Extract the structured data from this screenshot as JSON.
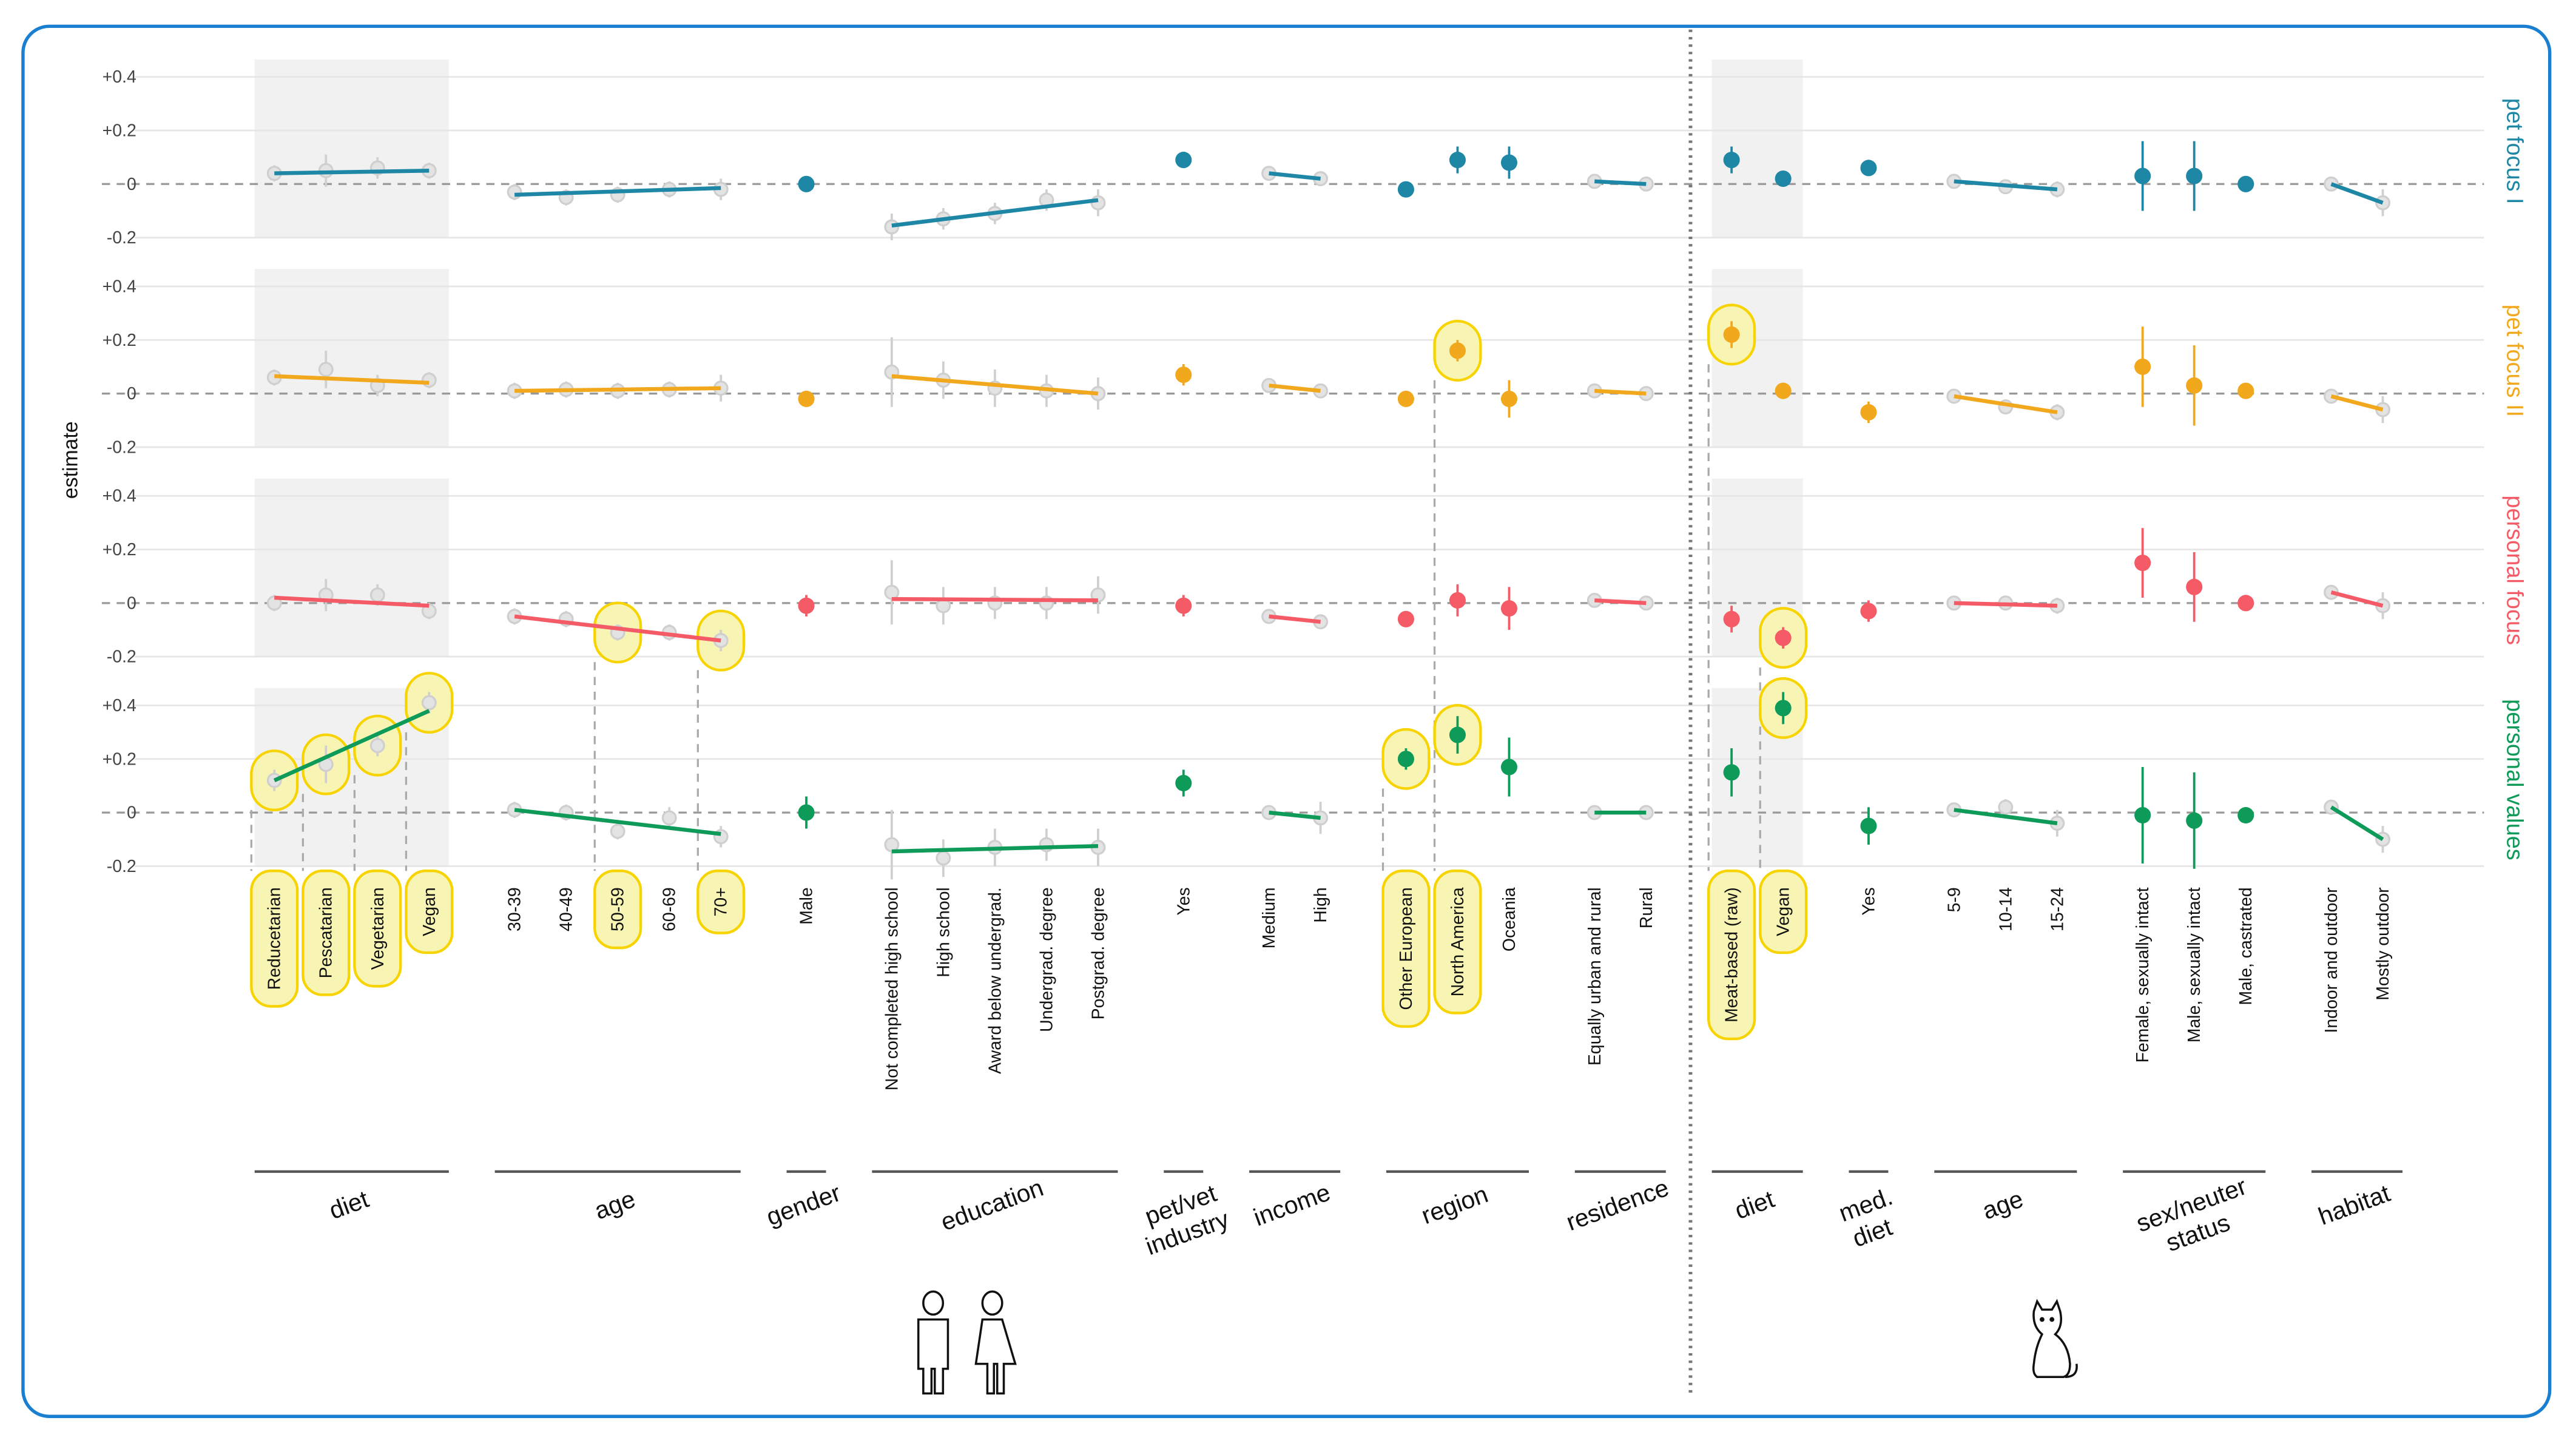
{
  "chart_data": {
    "type": "scatter",
    "title": "",
    "ylabel": "estimate",
    "ylim": [
      -0.2,
      0.4
    ],
    "yticks": [
      {
        "v": 0.4,
        "label": "+0.4"
      },
      {
        "v": 0.2,
        "label": "+0.2"
      },
      {
        "v": 0,
        "label": "0"
      },
      {
        "v": -0.2,
        "label": "-0.2"
      }
    ],
    "grid": true,
    "rows": [
      {
        "name": "pet focus I",
        "color": "#1f87a6"
      },
      {
        "name": "pet focus II",
        "color": "#f2a81d"
      },
      {
        "name": "personal focus",
        "color": "#f45b66"
      },
      {
        "name": "personal values",
        "color": "#0e9a58"
      }
    ],
    "groups": [
      {
        "key": "hdiet",
        "label": [
          "diet"
        ],
        "side": "human",
        "trend": true,
        "shaded": true,
        "categories": [
          "Reducetarian",
          "Pescatarian",
          "Vegetarian",
          "Vegan"
        ]
      },
      {
        "key": "hage",
        "label": [
          "age"
        ],
        "side": "human",
        "trend": true,
        "categories": [
          "30-39",
          "40-49",
          "50-59",
          "60-69",
          "70+"
        ]
      },
      {
        "key": "gender",
        "label": [
          "gender"
        ],
        "side": "human",
        "trend": false,
        "categories": [
          "Male"
        ]
      },
      {
        "key": "edu",
        "label": [
          "education"
        ],
        "side": "human",
        "trend": true,
        "categories": [
          "Not completed high school",
          "High school",
          "Award below undergrad.",
          "Undergrad. degree",
          "Postgrad. degree"
        ]
      },
      {
        "key": "pet",
        "label": [
          "pet/vet",
          "industry"
        ],
        "side": "human",
        "trend": false,
        "categories": [
          "Yes"
        ]
      },
      {
        "key": "income",
        "label": [
          "income"
        ],
        "side": "human",
        "trend": true,
        "categories": [
          "Medium",
          "High"
        ]
      },
      {
        "key": "region",
        "label": [
          "region"
        ],
        "side": "human",
        "trend": false,
        "categories": [
          "Other European",
          "North America",
          "Oceania"
        ]
      },
      {
        "key": "residence",
        "label": [
          "residence"
        ],
        "side": "human",
        "trend": true,
        "categories": [
          "Equally urban and rural",
          "Rural"
        ]
      },
      {
        "key": "cdiet",
        "label": [
          "diet"
        ],
        "side": "cat",
        "trend": false,
        "shaded": true,
        "categories": [
          "Meat-based (raw)",
          "Vegan"
        ]
      },
      {
        "key": "med",
        "label": [
          "med.",
          "diet"
        ],
        "side": "cat",
        "trend": false,
        "categories": [
          "Yes"
        ]
      },
      {
        "key": "cage",
        "label": [
          "age"
        ],
        "side": "cat",
        "trend": true,
        "categories": [
          "5-9",
          "10-14",
          "15-24"
        ]
      },
      {
        "key": "sex",
        "label": [
          "sex/neuter",
          "status"
        ],
        "side": "cat",
        "trend": false,
        "categories": [
          "Female, sexually intact",
          "Male, sexually intact",
          "Male, castrated"
        ]
      },
      {
        "key": "habitat",
        "label": [
          "habitat"
        ],
        "side": "cat",
        "trend": true,
        "categories": [
          "Indoor and outdoor",
          "Mostly outdoor"
        ]
      }
    ],
    "series": [
      {
        "row": "pet focus I",
        "values": {
          "hdiet": [
            [
              0.04,
              0.03
            ],
            [
              0.05,
              0.06
            ],
            [
              0.06,
              0.04
            ],
            [
              0.05,
              0.03
            ]
          ],
          "hdiet_trend": [
            0.04,
            0.05
          ],
          "hage": [
            [
              -0.03,
              0.03
            ],
            [
              -0.05,
              0.03
            ],
            [
              -0.04,
              0.03
            ],
            [
              -0.02,
              0.03
            ],
            [
              -0.02,
              0.04
            ]
          ],
          "hage_trend": [
            -0.04,
            -0.015
          ],
          "gender": [
            [
              0.0,
              0.03
            ]
          ],
          "edu": [
            [
              -0.16,
              0.05
            ],
            [
              -0.13,
              0.04
            ],
            [
              -0.11,
              0.04
            ],
            [
              -0.06,
              0.04
            ],
            [
              -0.07,
              0.05
            ]
          ],
          "edu_trend": [
            -0.155,
            -0.06
          ],
          "pet": [
            [
              0.09,
              0.03
            ]
          ],
          "income": [
            [
              0.04,
              0.02
            ],
            [
              0.02,
              0.02
            ]
          ],
          "income_trend": [
            0.04,
            0.02
          ],
          "region": [
            [
              -0.02,
              0.02
            ],
            [
              0.09,
              0.05
            ],
            [
              0.08,
              0.06
            ]
          ],
          "residence": [
            [
              0.01,
              0.01
            ],
            [
              0.0,
              0.01
            ]
          ],
          "residence_trend": [
            0.01,
            0.0
          ],
          "cdiet": [
            [
              0.09,
              0.05
            ],
            [
              0.02,
              0.03
            ]
          ],
          "med": [
            [
              0.06,
              0.03
            ]
          ],
          "cage": [
            [
              0.01,
              0.02
            ],
            [
              -0.01,
              0.02
            ],
            [
              -0.02,
              0.03
            ]
          ],
          "cage_trend": [
            0.01,
            -0.02
          ],
          "sex": [
            [
              0.03,
              0.13
            ],
            [
              0.03,
              0.13
            ],
            [
              0.0,
              0.01
            ]
          ],
          "habitat": [
            [
              0.0,
              0.01
            ],
            [
              -0.07,
              0.05
            ]
          ],
          "habitat_trend": [
            0.0,
            -0.07
          ]
        }
      },
      {
        "row": "pet focus II",
        "values": {
          "hdiet": [
            [
              0.06,
              0.03
            ],
            [
              0.09,
              0.07
            ],
            [
              0.03,
              0.04
            ],
            [
              0.05,
              0.03
            ]
          ],
          "hdiet_trend": [
            0.065,
            0.04
          ],
          "hage": [
            [
              0.01,
              0.03
            ],
            [
              0.015,
              0.03
            ],
            [
              0.01,
              0.03
            ],
            [
              0.015,
              0.03
            ],
            [
              0.02,
              0.05
            ]
          ],
          "hage_trend": [
            0.01,
            0.02
          ],
          "gender": [
            [
              -0.02,
              0.03
            ]
          ],
          "edu": [
            [
              0.08,
              0.13
            ],
            [
              0.05,
              0.07
            ],
            [
              0.02,
              0.07
            ],
            [
              0.01,
              0.06
            ],
            [
              0.0,
              0.06
            ]
          ],
          "edu_trend": [
            0.065,
            0.0
          ],
          "pet": [
            [
              0.07,
              0.04
            ]
          ],
          "income": [
            [
              0.03,
              0.01
            ],
            [
              0.01,
              0.02
            ]
          ],
          "income_trend": [
            0.03,
            0.01
          ],
          "region": [
            [
              -0.02,
              0.02
            ],
            [
              0.16,
              0.04
            ],
            [
              -0.02,
              0.07
            ]
          ],
          "residence": [
            [
              0.01,
              0.01
            ],
            [
              0.0,
              0.01
            ]
          ],
          "residence_trend": [
            0.01,
            0.0
          ],
          "cdiet": [
            [
              0.22,
              0.05
            ],
            [
              0.01,
              0.03
            ]
          ],
          "med": [
            [
              -0.07,
              0.04
            ]
          ],
          "cage": [
            [
              -0.01,
              0.02
            ],
            [
              -0.05,
              0.02
            ],
            [
              -0.07,
              0.03
            ]
          ],
          "cage_trend": [
            -0.01,
            -0.07
          ],
          "sex": [
            [
              0.1,
              0.15
            ],
            [
              0.03,
              0.15
            ],
            [
              0.01,
              0.01
            ]
          ],
          "habitat": [
            [
              -0.01,
              0.01
            ],
            [
              -0.06,
              0.05
            ]
          ],
          "habitat_trend": [
            -0.01,
            -0.06
          ]
        }
      },
      {
        "row": "personal focus",
        "values": {
          "hdiet": [
            [
              0.0,
              0.03
            ],
            [
              0.03,
              0.06
            ],
            [
              0.03,
              0.04
            ],
            [
              -0.03,
              0.03
            ]
          ],
          "hdiet_trend": [
            0.02,
            -0.01
          ],
          "hage": [
            [
              -0.05,
              0.03
            ],
            [
              -0.06,
              0.03
            ],
            [
              -0.11,
              0.03
            ],
            [
              -0.11,
              0.03
            ],
            [
              -0.14,
              0.04
            ]
          ],
          "hage_trend": [
            -0.05,
            -0.14
          ],
          "gender": [
            [
              -0.01,
              0.04
            ]
          ],
          "edu": [
            [
              0.04,
              0.12
            ],
            [
              -0.01,
              0.07
            ],
            [
              0.0,
              0.06
            ],
            [
              0.0,
              0.06
            ],
            [
              0.03,
              0.07
            ]
          ],
          "edu_trend": [
            0.015,
            0.01
          ],
          "pet": [
            [
              -0.01,
              0.04
            ]
          ],
          "income": [
            [
              -0.05,
              0.01
            ],
            [
              -0.07,
              0.02
            ]
          ],
          "income_trend": [
            -0.05,
            -0.07
          ],
          "region": [
            [
              -0.06,
              0.03
            ],
            [
              0.01,
              0.06
            ],
            [
              -0.02,
              0.08
            ]
          ],
          "residence": [
            [
              0.01,
              0.01
            ],
            [
              0.0,
              0.01
            ]
          ],
          "residence_trend": [
            0.01,
            0.0
          ],
          "cdiet": [
            [
              -0.06,
              0.05
            ],
            [
              -0.13,
              0.04
            ]
          ],
          "med": [
            [
              -0.03,
              0.04
            ]
          ],
          "cage": [
            [
              0.0,
              0.02
            ],
            [
              0.0,
              0.02
            ],
            [
              -0.01,
              0.03
            ]
          ],
          "cage_trend": [
            0.0,
            -0.01
          ],
          "sex": [
            [
              0.15,
              0.13
            ],
            [
              0.06,
              0.13
            ],
            [
              0.0,
              0.01
            ]
          ],
          "habitat": [
            [
              0.04,
              0.01
            ],
            [
              -0.01,
              0.05
            ]
          ],
          "habitat_trend": [
            0.04,
            -0.01
          ]
        }
      },
      {
        "row": "personal values",
        "values": {
          "hdiet": [
            [
              0.12,
              0.04
            ],
            [
              0.18,
              0.07
            ],
            [
              0.25,
              0.04
            ],
            [
              0.41,
              0.04
            ]
          ],
          "hdiet_trend": [
            0.12,
            0.38
          ],
          "hage": [
            [
              0.01,
              0.03
            ],
            [
              0.0,
              0.03
            ],
            [
              -0.07,
              0.03
            ],
            [
              -0.02,
              0.04
            ],
            [
              -0.09,
              0.04
            ]
          ],
          "hage_trend": [
            0.01,
            -0.08
          ],
          "gender": [
            [
              0.0,
              0.06
            ]
          ],
          "edu": [
            [
              -0.12,
              0.13
            ],
            [
              -0.17,
              0.07
            ],
            [
              -0.13,
              0.07
            ],
            [
              -0.12,
              0.06
            ],
            [
              -0.13,
              0.07
            ]
          ],
          "edu_trend": [
            -0.145,
            -0.125
          ],
          "pet": [
            [
              0.11,
              0.05
            ]
          ],
          "income": [
            [
              0.0,
              0.01
            ],
            [
              -0.02,
              0.06
            ]
          ],
          "income_trend": [
            0.0,
            -0.02
          ],
          "region": [
            [
              0.2,
              0.04
            ],
            [
              0.29,
              0.07
            ],
            [
              0.17,
              0.11
            ]
          ],
          "residence": [
            [
              0.0,
              0.01
            ],
            [
              0.0,
              0.01
            ]
          ],
          "residence_trend": [
            0.0,
            0.0
          ],
          "cdiet": [
            [
              0.15,
              0.09
            ],
            [
              0.39,
              0.06
            ]
          ],
          "med": [
            [
              -0.05,
              0.07
            ]
          ],
          "cage": [
            [
              0.01,
              0.02
            ],
            [
              0.02,
              0.03
            ],
            [
              -0.04,
              0.05
            ]
          ],
          "cage_trend": [
            0.01,
            -0.04
          ],
          "sex": [
            [
              -0.01,
              0.18
            ],
            [
              -0.03,
              0.18
            ],
            [
              -0.01,
              0.03
            ]
          ],
          "habitat": [
            [
              0.02,
              0.01
            ],
            [
              -0.1,
              0.05
            ]
          ],
          "habitat_trend": [
            0.02,
            -0.1
          ]
        }
      }
    ],
    "highlights": [
      {
        "row": 3,
        "group": "hdiet",
        "cat": 0
      },
      {
        "row": 3,
        "group": "hdiet",
        "cat": 1
      },
      {
        "row": 3,
        "group": "hdiet",
        "cat": 2
      },
      {
        "row": 3,
        "group": "hdiet",
        "cat": 3
      },
      {
        "row": 2,
        "group": "hage",
        "cat": 2
      },
      {
        "row": 2,
        "group": "hage",
        "cat": 4
      },
      {
        "row": 1,
        "group": "region",
        "cat": 1
      },
      {
        "row": 3,
        "group": "region",
        "cat": 0
      },
      {
        "row": 3,
        "group": "region",
        "cat": 1
      },
      {
        "row": 1,
        "group": "cdiet",
        "cat": 0
      },
      {
        "row": 2,
        "group": "cdiet",
        "cat": 1
      },
      {
        "row": 3,
        "group": "cdiet",
        "cat": 1
      }
    ],
    "highlight_colors": {
      "fill": "#f8f5b4",
      "stroke": "#f7d300"
    },
    "icons": [
      "people-icon",
      "cat-icon"
    ]
  }
}
